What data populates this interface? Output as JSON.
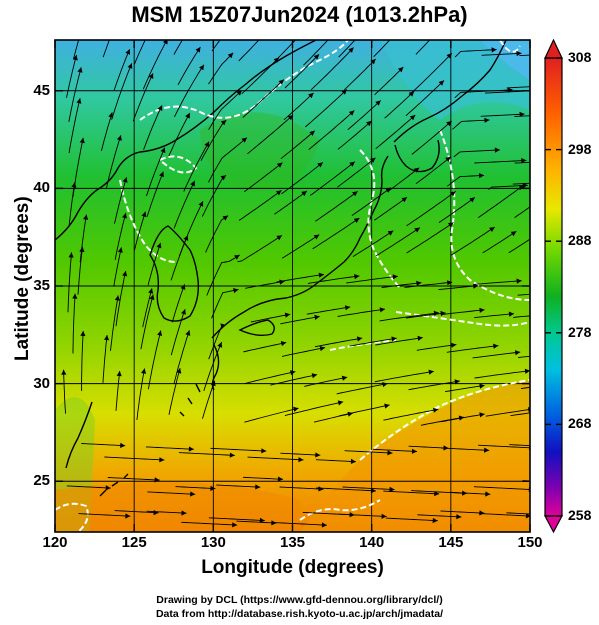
{
  "title": "MSM 15Z07Jun2024 (1013.2hPa)",
  "axes": {
    "xlabel": "Longitude (degrees)",
    "ylabel": "Latitude  (degrees)",
    "x_ticks": [
      "120",
      "125",
      "130",
      "135",
      "140",
      "145",
      "150"
    ],
    "y_ticks": [
      "25",
      "30",
      "35",
      "40",
      "45"
    ],
    "x_range": [
      120,
      150
    ],
    "y_range": [
      22.4,
      47.6
    ]
  },
  "colorbar": {
    "ticks": [
      "308",
      "298",
      "288",
      "278",
      "268",
      "258"
    ],
    "range": [
      258,
      308
    ],
    "colors": [
      "#e8007f",
      "#8000c0",
      "#1020d0",
      "#0090e8",
      "#00d0d0",
      "#00c070",
      "#20c020",
      "#80e000",
      "#e8e800",
      "#ffa000",
      "#ff5000",
      "#e02020"
    ]
  },
  "credits": {
    "line1": "Drawing by DCL (https://www.gfd-dennou.org/library/dcl/)",
    "line2": "Data from http://database.rish.kyoto-u.ac.jp/arch/jmadata/"
  }
}
